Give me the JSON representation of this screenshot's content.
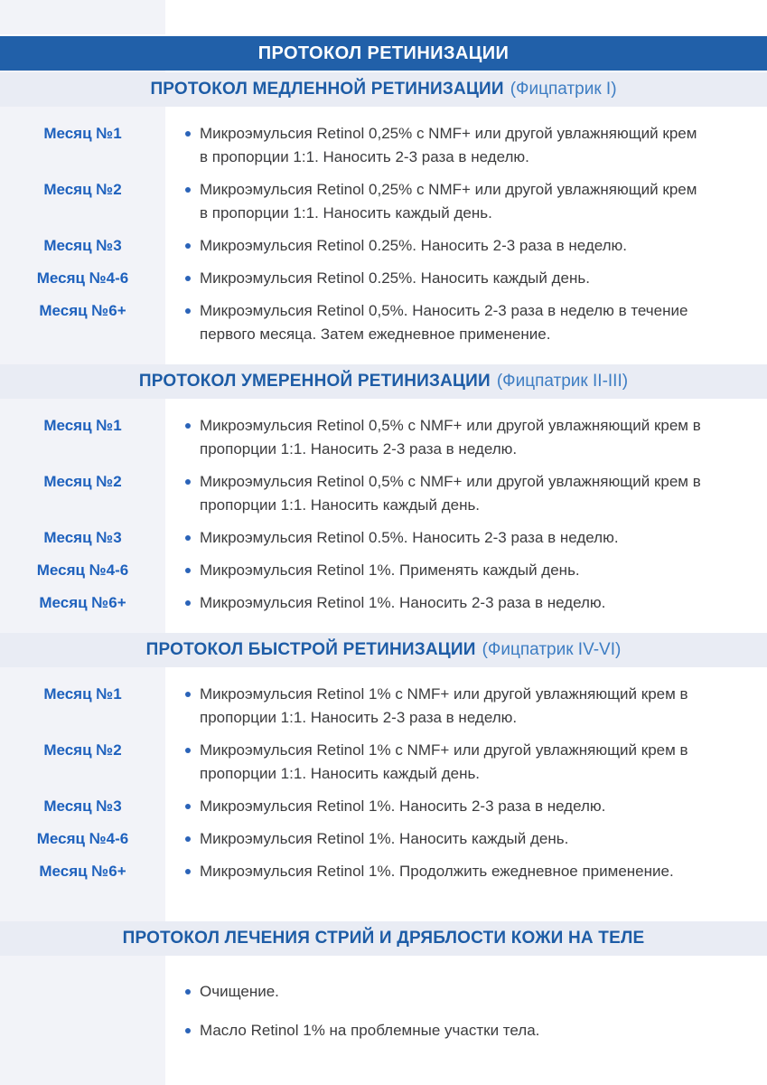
{
  "page": {
    "title": "ПРОТОКОЛ РЕТИНИЗАЦИИ"
  },
  "colors": {
    "title_bar_blue": "#2160a9",
    "section_header_background": "#e9ecf4",
    "section_heading_blue": "#1d5ca6",
    "section_note_blue": "#3d7dc3",
    "month_label_blue": "#1e61bd",
    "bullet_blue": "#2a63b8",
    "body_text": "#3c3c3e",
    "left_strip_gray": "#f2f3f8"
  },
  "sections": [
    {
      "heading": "ПРОТОКОЛ МЕДЛЕННОЙ РЕТИНИЗАЦИИ",
      "heading_note": "(Фицпатрик I)",
      "rows": [
        {
          "label": "Месяц №1",
          "text": "Микроэмульсия Retinol 0,25% с NMF+ или другой увлажняющий крем в пропорции 1:1. Наносить 2-3 раза в неделю."
        },
        {
          "label": "Месяц №2",
          "text": "Микроэмульсия Retinol 0,25% с NMF+ или другой увлажняющий крем в пропорции 1:1. Наносить каждый день."
        },
        {
          "label": "Месяц №3",
          "text": "Микроэмульсия Retinol 0.25%. Наносить 2-3 раза в неделю."
        },
        {
          "label": "Месяц №4-6",
          "text": "Микроэмульсия Retinol 0.25%. Наносить каждый день."
        },
        {
          "label": "Месяц №6+",
          "text": "Микроэмульсия Retinol 0,5%. Наносить 2-3 раза в неделю в течение первого месяца. Затем ежедневное применение."
        }
      ]
    },
    {
      "heading": "ПРОТОКОЛ УМЕРЕННОЙ РЕТИНИЗАЦИИ",
      "heading_note": "(Фицпатрик II-III)",
      "rows": [
        {
          "label": "Месяц №1",
          "text": "Микроэмульсия Retinol 0,5% с NMF+ или другой увлажняющий крем в пропорции 1:1. Наносить 2-3 раза в неделю."
        },
        {
          "label": "Месяц №2",
          "text": "Микроэмульсия Retinol 0,5% с NMF+ или другой увлажняющий крем в пропорции 1:1. Наносить каждый день."
        },
        {
          "label": "Месяц №3",
          "text": "Микроэмульсия Retinol 0.5%. Наносить 2-3 раза в неделю."
        },
        {
          "label": "Месяц №4-6",
          "text": "Микроэмульсия Retinol 1%. Применять каждый день."
        },
        {
          "label": "Месяц №6+",
          "text": "Микроэмульсия Retinol 1%. Наносить 2-3 раза в неделю."
        }
      ]
    },
    {
      "heading": "ПРОТОКОЛ БЫСТРОЙ РЕТИНИЗАЦИИ",
      "heading_note": "(Фицпатрик IV-VI)",
      "rows": [
        {
          "label": "Месяц №1",
          "text": "Микроэмульсия Retinol 1% с NMF+ или другой увлажняющий крем в пропорции 1:1. Наносить 2-3 раза в неделю."
        },
        {
          "label": "Месяц №2",
          "text": "Микроэмульсия Retinol 1% с NMF+ или другой увлажняющий крем в пропорции 1:1. Наносить каждый день."
        },
        {
          "label": "Месяц №3",
          "text": "Микроэмульсия Retinol 1%. Наносить 2-3 раза в неделю."
        },
        {
          "label": "Месяц №4-6",
          "text": "Микроэмульсия Retinol 1%. Наносить каждый день."
        },
        {
          "label": "Месяц №6+",
          "text": "Микроэмульсия Retinol 1%. Продолжить ежедневное применение."
        }
      ]
    },
    {
      "heading": "ПРОТОКОЛ ЛЕЧЕНИЯ СТРИЙ И ДРЯБЛОСТИ КОЖИ НА ТЕЛЕ",
      "heading_note": "",
      "rows": [
        {
          "label": "",
          "text": "Очищение."
        },
        {
          "label": "",
          "text": "Масло Retinol 1% на проблемные участки тела."
        }
      ]
    }
  ]
}
